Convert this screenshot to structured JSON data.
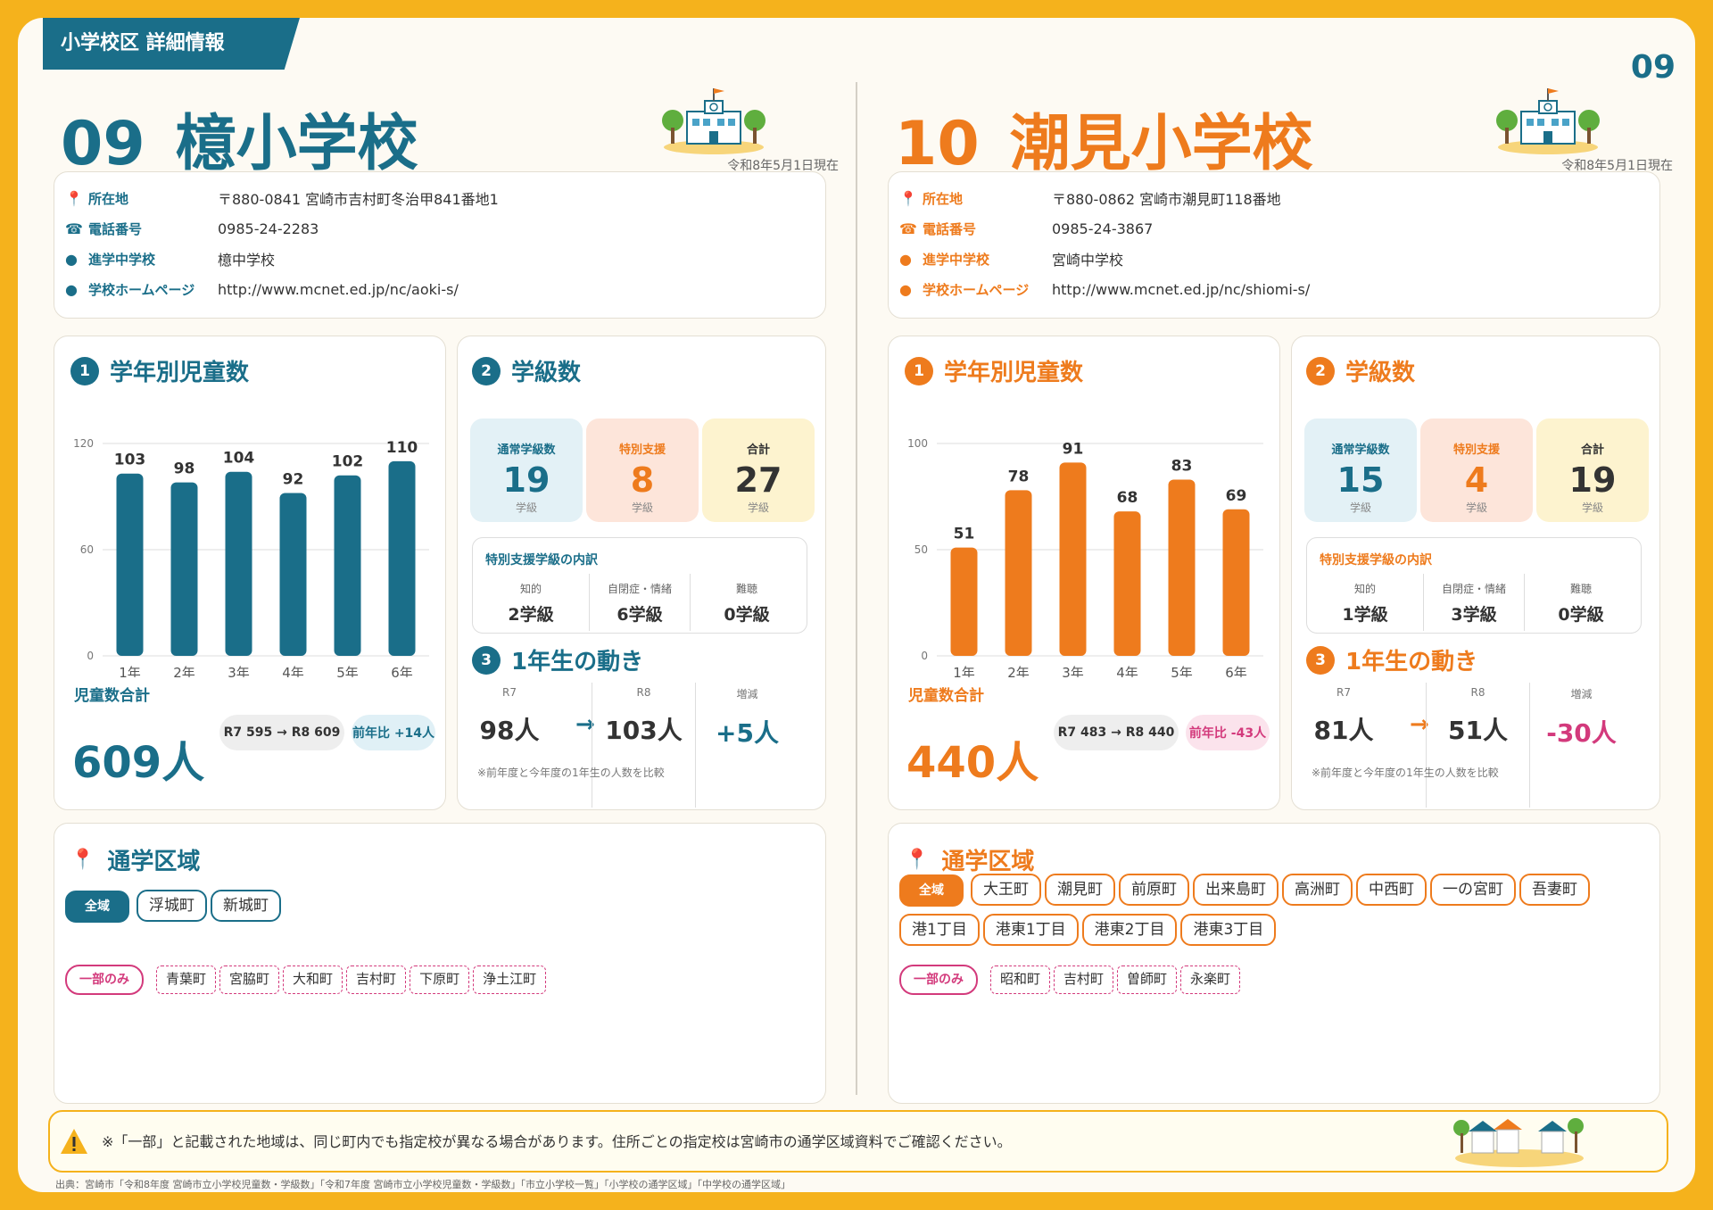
{
  "header": {
    "tag": "小学校区 詳細情報",
    "page_number": "09"
  },
  "footnote": "※「一部」と記載された地域は、同じ町内でも指定校が異なる場合があります。住所ごとの指定校は宮崎市の通学区域資料でご確認ください。",
  "source": "出典：宮崎市「令和8年度 宮崎市立小学校児童数・学級数」「令和7年度 宮崎市立小学校児童数・学級数」「市立小学校一覧」「小学校の通学区域」「中学校の通学区域」",
  "colors": {
    "left_accent": "#1a6e89",
    "right_accent": "#ee7b1d",
    "page_bg": "#f5b21c",
    "minus": "#d33a7c"
  },
  "labels": {
    "as_of": "令和8年5月1日現在",
    "address": "所在地",
    "phone": "電話番号",
    "jhs": "進学中学校",
    "homepage": "学校ホームページ",
    "sec1": "学年別児童数",
    "sec2": "学級数",
    "sec3": "1年生の動き",
    "sec4": "通学区域",
    "total": "児童数合計",
    "regular": "通常学級数",
    "special": "特別支援",
    "sum": "合計",
    "unit_class": "学級",
    "sp_breakdown": "特別支援学級の内訳",
    "intellectual": "知的",
    "autism": "自閉症・情緒",
    "hearing": "難聴",
    "r7": "R7",
    "r8": "R8",
    "change": "増減",
    "compare_note": "※前年度と今年度の1年生の人数を比較",
    "all": "全域",
    "partial": "一部のみ"
  },
  "left": {
    "number": "09",
    "name": "檍小学校",
    "address": "〒880-0841 宮崎市吉村町冬治甲841番地1",
    "phone": "0985-24-2283",
    "jhs": "檍中学校",
    "homepage": "http://www.mcnet.ed.jp/nc/aoki-s/",
    "total": "609人",
    "compare": "R7 595 → R8 609",
    "yoy": "前年比 +14人",
    "classes": {
      "regular": "19",
      "special": "8",
      "sum": "27"
    },
    "sp": {
      "intellectual": "2学級",
      "autism": "6学級",
      "hearing": "0学級"
    },
    "move": {
      "r7": "98人",
      "r8": "103人",
      "change": "+5人"
    },
    "areas_all": [
      "浮城町",
      "新城町"
    ],
    "areas_partial": [
      "青葉町",
      "宮脇町",
      "大和町",
      "吉村町",
      "下原町",
      "浄土江町"
    ]
  },
  "right": {
    "number": "10",
    "name": "潮見小学校",
    "address": "〒880-0862 宮崎市潮見町118番地",
    "phone": "0985-24-3867",
    "jhs": "宮崎中学校",
    "homepage": "http://www.mcnet.ed.jp/nc/shiomi-s/",
    "total": "440人",
    "compare": "R7 483 → R8 440",
    "yoy": "前年比 -43人",
    "classes": {
      "regular": "15",
      "special": "4",
      "sum": "19"
    },
    "sp": {
      "intellectual": "1学級",
      "autism": "3学級",
      "hearing": "0学級"
    },
    "move": {
      "r7": "81人",
      "r8": "51人",
      "change": "-30人"
    },
    "areas_all": [
      "大王町",
      "潮見町",
      "前原町",
      "出来島町",
      "高洲町",
      "中西町",
      "一の宮町",
      "吾妻町",
      "港1丁目",
      "港東1丁目",
      "港東2丁目",
      "港東3丁目"
    ],
    "areas_partial": [
      "昭和町",
      "吉村町",
      "曽師町",
      "永楽町"
    ]
  },
  "chart_data": [
    {
      "type": "bar",
      "categories": [
        "1年",
        "2年",
        "3年",
        "4年",
        "5年",
        "6年"
      ],
      "values": [
        103,
        98,
        104,
        92,
        102,
        110
      ],
      "ylim": [
        0,
        120
      ],
      "yticks": [
        0,
        60,
        120
      ],
      "color": "#1a6e89"
    },
    {
      "type": "bar",
      "categories": [
        "1年",
        "2年",
        "3年",
        "4年",
        "5年",
        "6年"
      ],
      "values": [
        51,
        78,
        91,
        68,
        83,
        69
      ],
      "ylim": [
        0,
        100
      ],
      "yticks": [
        0,
        50,
        100
      ],
      "color": "#ee7b1d"
    }
  ]
}
